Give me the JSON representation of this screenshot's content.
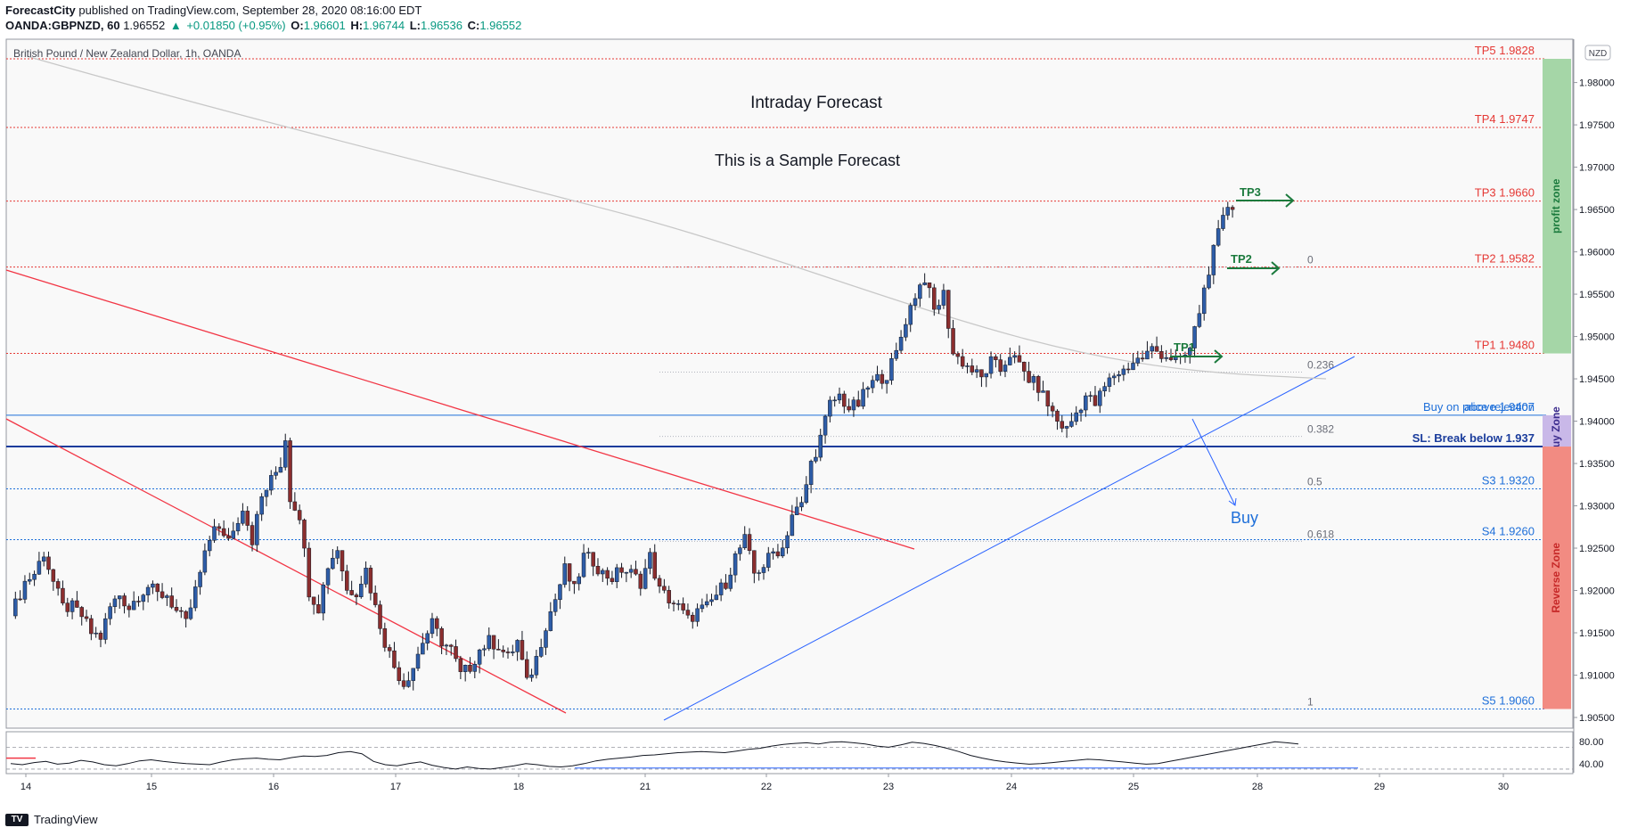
{
  "header": {
    "author": "ForecastCity",
    "published_text": "published on TradingView.com, September 28, 2020 08:16:00 EDT",
    "symbol": "OANDA:GBPNZD, 60",
    "last": "1.96552",
    "change": "+0.01850 (+0.95%)",
    "o_label": "O:",
    "o_value": "1.96601",
    "h_label": "H:",
    "h_value": "1.96744",
    "l_label": "L:",
    "l_value": "1.96536",
    "c_label": "C:",
    "c_value": "1.96552"
  },
  "footer": {
    "brand": "TradingView",
    "logo_text": "TV"
  },
  "colors": {
    "up": "#089981",
    "red_line": "#f23645",
    "blue_line": "#2962ff",
    "profit": "#a5d6a7",
    "buy": "#c8b8e8",
    "reverse": "#f08080"
  },
  "chart_data": {
    "type": "candlestick",
    "title": "British Pound / New Zealand Dollar, 1h, OANDA",
    "currency_badge": "NZD",
    "ylim": [
      1.905,
      1.9828
    ],
    "y_ticks": [
      "1.98000",
      "1.97500",
      "1.97000",
      "1.96500",
      "1.96000",
      "1.95500",
      "1.95000",
      "1.94500",
      "1.94000",
      "1.93500",
      "1.93000",
      "1.92500",
      "1.92000",
      "1.91500",
      "1.91000",
      "1.90500"
    ],
    "x_ticks": [
      "14",
      "15",
      "16",
      "17",
      "18",
      "21",
      "22",
      "23",
      "24",
      "25",
      "28",
      "29",
      "30"
    ],
    "annotations": {
      "main_title": "Intraday Forecast",
      "subtitle": "This is a Sample Forecast",
      "buy_label": "Buy",
      "tp1": "TP1",
      "tp2": "TP2",
      "tp3": "TP3"
    },
    "levels": [
      {
        "label": "TP5 1.9828",
        "value": 1.9828,
        "color": "#e53935",
        "style": "dotted"
      },
      {
        "label": "TP4 1.9747",
        "value": 1.9747,
        "color": "#e53935",
        "style": "dotted"
      },
      {
        "label": "TP3 1.9660",
        "value": 1.966,
        "color": "#e53935",
        "style": "dotted"
      },
      {
        "label": "TP2 1.9582",
        "value": 1.9582,
        "color": "#e53935",
        "style": "dotted"
      },
      {
        "label": "TP1 1.9480",
        "value": 1.948,
        "color": "#e53935",
        "style": "dotted"
      },
      {
        "label": "above 1.9407",
        "value": 1.9407,
        "color": "#1e6fd9",
        "style": "solid"
      },
      {
        "label": "SL: Break below 1.937",
        "value": 1.937,
        "color": "#1a3c9c",
        "style": "thick"
      },
      {
        "label": "S3 1.9320",
        "value": 1.932,
        "color": "#1e6fd9",
        "style": "dotted"
      },
      {
        "label": "S4 1.9260",
        "value": 1.926,
        "color": "#1e6fd9",
        "style": "dotted"
      },
      {
        "label": "S5 1.9060",
        "value": 1.906,
        "color": "#1e6fd9",
        "style": "dotted"
      }
    ],
    "buy_on_rejection_label": "Buy on price rejection",
    "fib_levels": [
      {
        "label": "0",
        "value": 1.9582
      },
      {
        "label": "0.236",
        "value": 1.9458
      },
      {
        "label": "0.382",
        "value": 1.9382
      },
      {
        "label": "0.5",
        "value": 1.932
      },
      {
        "label": "0.618",
        "value": 1.9258
      },
      {
        "label": "1",
        "value": 1.906
      }
    ],
    "zones": [
      {
        "label": "profit zone",
        "from": 1.948,
        "to": 1.9828,
        "color": "#a5d6a7"
      },
      {
        "label": "Buy Zone",
        "from": 1.937,
        "to": 1.9407,
        "color": "#c9b8e8"
      },
      {
        "label": "Reverse Zone",
        "from": 1.906,
        "to": 1.937,
        "color": "#f28b82"
      }
    ],
    "close_path": [
      [
        0,
        1.917
      ],
      [
        3,
        1.921
      ],
      [
        5,
        1.922
      ],
      [
        7,
        1.9245
      ],
      [
        9,
        1.921
      ],
      [
        11,
        1.918
      ],
      [
        13,
        1.918
      ],
      [
        15,
        1.917
      ],
      [
        17,
        1.915
      ],
      [
        19,
        1.9145
      ],
      [
        21,
        1.918
      ],
      [
        23,
        1.9195
      ],
      [
        25,
        1.918
      ],
      [
        27,
        1.9195
      ],
      [
        29,
        1.9205
      ],
      [
        31,
        1.9195
      ],
      [
        33,
        1.9195
      ],
      [
        35,
        1.9175
      ],
      [
        37,
        1.916
      ],
      [
        39,
        1.92
      ],
      [
        41,
        1.924
      ],
      [
        43,
        1.928
      ],
      [
        45,
        1.926
      ],
      [
        47,
        1.927
      ],
      [
        49,
        1.93
      ],
      [
        51,
        1.926
      ],
      [
        53,
        1.931
      ],
      [
        55,
        1.933
      ],
      [
        57,
        1.935
      ],
      [
        58,
        1.938
      ],
      [
        59,
        1.931
      ],
      [
        61,
        1.929
      ],
      [
        63,
        1.92
      ],
      [
        65,
        1.918
      ],
      [
        67,
        1.923
      ],
      [
        69,
        1.925
      ],
      [
        71,
        1.92
      ],
      [
        73,
        1.92
      ],
      [
        75,
        1.9225
      ],
      [
        77,
        1.918
      ],
      [
        79,
        1.914
      ],
      [
        81,
        1.911
      ],
      [
        83,
        1.909
      ],
      [
        85,
        1.911
      ],
      [
        87,
        1.914
      ],
      [
        89,
        1.916
      ],
      [
        91,
        1.914
      ],
      [
        93,
        1.913
      ],
      [
        95,
        1.91
      ],
      [
        97,
        1.911
      ],
      [
        99,
        1.913
      ],
      [
        101,
        1.914
      ],
      [
        103,
        1.9135
      ],
      [
        105,
        1.912
      ],
      [
        107,
        1.914
      ],
      [
        109,
        1.909
      ],
      [
        111,
        1.912
      ],
      [
        113,
        1.916
      ],
      [
        115,
        1.919
      ],
      [
        117,
        1.9225
      ],
      [
        119,
        1.92
      ],
      [
        121,
        1.924
      ],
      [
        123,
        1.9235
      ],
      [
        125,
        1.922
      ],
      [
        127,
        1.9215
      ],
      [
        129,
        1.9225
      ],
      [
        131,
        1.922
      ],
      [
        133,
        1.921
      ],
      [
        135,
        1.924
      ],
      [
        137,
        1.92
      ],
      [
        139,
        1.919
      ],
      [
        141,
        1.918
      ],
      [
        143,
        1.9165
      ],
      [
        145,
        1.9175
      ],
      [
        147,
        1.918
      ],
      [
        149,
        1.9195
      ],
      [
        151,
        1.921
      ],
      [
        153,
        1.924
      ],
      [
        155,
        1.926
      ],
      [
        157,
        1.922
      ],
      [
        159,
        1.923
      ],
      [
        161,
        1.9245
      ],
      [
        163,
        1.925
      ],
      [
        165,
        1.929
      ],
      [
        167,
        1.93
      ],
      [
        169,
        1.935
      ],
      [
        171,
        1.938
      ],
      [
        173,
        1.942
      ],
      [
        175,
        1.943
      ],
      [
        177,
        1.9415
      ],
      [
        179,
        1.942
      ],
      [
        181,
        1.944
      ],
      [
        183,
        1.945
      ],
      [
        185,
        1.9455
      ],
      [
        187,
        1.948
      ],
      [
        189,
        1.952
      ],
      [
        191,
        1.955
      ],
      [
        193,
        1.957
      ],
      [
        195,
        1.953
      ],
      [
        197,
        1.955
      ],
      [
        199,
        1.948
      ],
      [
        201,
        1.947
      ],
      [
        203,
        1.946
      ],
      [
        205,
        1.945
      ],
      [
        207,
        1.947
      ],
      [
        209,
        1.946
      ],
      [
        211,
        1.948
      ],
      [
        213,
        1.9465
      ],
      [
        215,
        1.945
      ],
      [
        217,
        1.944
      ],
      [
        219,
        1.942
      ],
      [
        221,
        1.94
      ],
      [
        223,
        1.939
      ],
      [
        225,
        1.941
      ],
      [
        227,
        1.943
      ],
      [
        229,
        1.942
      ],
      [
        231,
        1.944
      ],
      [
        233,
        1.9455
      ],
      [
        235,
        1.946
      ],
      [
        237,
        1.947
      ],
      [
        239,
        1.9475
      ],
      [
        241,
        1.9485
      ],
      [
        243,
        1.948
      ],
      [
        245,
        1.9475
      ],
      [
        247,
        1.947
      ],
      [
        249,
        1.9485
      ],
      [
        251,
        1.953
      ],
      [
        253,
        1.958
      ],
      [
        255,
        1.962
      ],
      [
        257,
        1.9655
      ],
      [
        258,
        1.9655
      ]
    ],
    "x_span": 280,
    "rsi": {
      "ylim": [
        25,
        95
      ],
      "ticks": [
        "80.00",
        "40.00"
      ],
      "levels": [
        70,
        30
      ],
      "values": [
        40,
        38,
        42,
        44,
        39,
        41,
        46,
        43,
        38,
        36,
        40,
        45,
        47,
        44,
        42,
        40,
        39,
        38,
        43,
        47,
        49,
        50,
        48,
        47,
        51,
        54,
        53,
        55,
        60,
        62,
        58,
        44,
        38,
        36,
        40,
        43,
        37,
        33,
        30,
        34,
        31,
        30,
        33,
        36,
        40,
        38,
        35,
        34,
        36,
        40,
        45,
        48,
        50,
        52,
        55,
        56,
        58,
        60,
        61,
        62,
        61,
        60,
        63,
        66,
        68,
        72,
        75,
        77,
        78,
        76,
        79,
        80,
        78,
        76,
        72,
        70,
        74,
        79,
        77,
        73,
        68,
        62,
        55,
        50,
        46,
        43,
        41,
        39,
        40,
        42,
        44,
        46,
        48,
        47,
        45,
        43,
        41,
        39,
        40,
        44,
        48,
        52,
        56,
        60,
        64,
        68,
        72,
        76,
        80,
        78,
        76
      ]
    }
  }
}
